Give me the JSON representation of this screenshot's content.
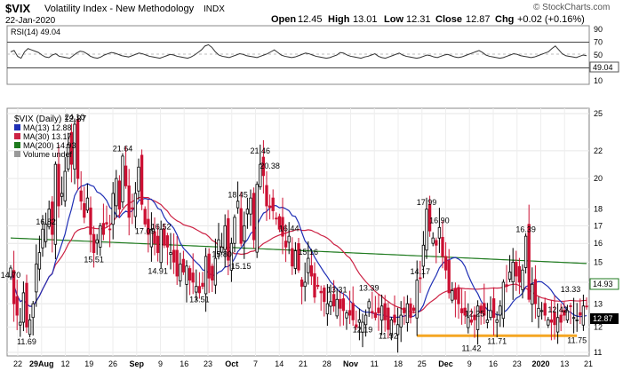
{
  "header": {
    "symbol": "$VIX",
    "name": "Volatility Index - New Methodology",
    "exchange": "INDX",
    "date": "22-Jan-2020",
    "watermark": "© StockCharts.com",
    "open_label": "Open",
    "open": "12.45",
    "high_label": "High",
    "high": "13.01",
    "low_label": "Low",
    "low": "12.31",
    "close_label": "Close",
    "close": "12.87",
    "chg_label": "Chg",
    "chg": "+0.02 (+0.16%)"
  },
  "rsi_panel": {
    "label": "RSI(14) 49.04",
    "value_badge": "49.04",
    "ticks": [
      "90",
      "70",
      "50",
      "30",
      "10"
    ],
    "levels": [
      70,
      30
    ],
    "ylim": [
      10,
      90
    ],
    "values": [
      55,
      57,
      48,
      45,
      55,
      60,
      58,
      56,
      54,
      50,
      47,
      46,
      50,
      52,
      48,
      47,
      46,
      45,
      49,
      53,
      56,
      55,
      52,
      48,
      46,
      45,
      47,
      50,
      52,
      54,
      53,
      51,
      49,
      48,
      47,
      49,
      51,
      53,
      52,
      50,
      48,
      47,
      46,
      45,
      47,
      49,
      51,
      50,
      48,
      47,
      46,
      45,
      47,
      50,
      54,
      58,
      64,
      66,
      62,
      55,
      50,
      48,
      47,
      46,
      48,
      50,
      52,
      51,
      49,
      48,
      47,
      46,
      48,
      50,
      52,
      55,
      58,
      54,
      50,
      48,
      47,
      46,
      47,
      49,
      51,
      53,
      52,
      50,
      48,
      47,
      46,
      45,
      46,
      48,
      50,
      54,
      53,
      50,
      48,
      47,
      46,
      45,
      47,
      48,
      50,
      52,
      48,
      46,
      45,
      47,
      49,
      51,
      53,
      50,
      48,
      47,
      46,
      45,
      46,
      48,
      50,
      49,
      47,
      46,
      48,
      50,
      51,
      49,
      47,
      46,
      47,
      49,
      51,
      53,
      55,
      57,
      54,
      50,
      48,
      47,
      46,
      45,
      46,
      48,
      50,
      52,
      51,
      49,
      48,
      47,
      46,
      47,
      49,
      51,
      53,
      55,
      60,
      64,
      58,
      52,
      49,
      48,
      47,
      46,
      48,
      50,
      49.04
    ]
  },
  "price_panel": {
    "legend_title": "$VIX (Daily) 12.87",
    "legend_items": [
      {
        "label": "MA(13) 12.88",
        "color": "#1f2fb5"
      },
      {
        "label": "MA(30) 13.17",
        "color": "#cc2244"
      },
      {
        "label": "MA(200) 14.93",
        "color": "#1e7a1e"
      },
      {
        "label": "Volume undef",
        "color": "#999999"
      }
    ],
    "y_ticks": [
      "25",
      "22",
      "20",
      "18",
      "17",
      "16",
      "15",
      "14",
      "13",
      "12",
      "11"
    ],
    "price_badge": "12.87",
    "ma200_badge": "14.93",
    "x_ticks": [
      "22",
      "29Aug",
      "12",
      "19",
      "26",
      "Sep",
      "9",
      "16",
      "23",
      "Oct",
      "7",
      "14",
      "21",
      "28",
      "Nov",
      "11",
      "18",
      "25",
      "Dec",
      "9",
      "16",
      "23",
      "2020",
      "13",
      "21"
    ],
    "annotations": [
      "14.70",
      "11.69",
      "16.82",
      "24.10",
      "15.51",
      "21.64",
      "17.09",
      "14.91",
      "16.52",
      "13.51",
      "15.80",
      "18.45",
      "15.15",
      "21.46",
      "20.38",
      "16.44",
      "15.16",
      "13.31",
      "13.39",
      "12.19",
      "11.92",
      "14.17",
      "17.99",
      "16.90",
      "11.42",
      "12.25",
      "11.71",
      "16.39",
      "12.42",
      "13.33",
      "11.75"
    ],
    "colors": {
      "up": "#000000",
      "down": "#cc1133",
      "support": "#f5a623",
      "ma13": "#1f2fb5",
      "ma30": "#cc2244",
      "ma200": "#1e7a1e"
    }
  },
  "chart_data": {
    "type": "line",
    "title": "$VIX Volatility Index - New Methodology",
    "ylabel": "",
    "ylim": [
      11,
      25
    ],
    "yscale": "log",
    "series": [
      {
        "name": "$VIX (Daily)",
        "values": [
          14.7,
          13.0,
          12.5,
          12.2,
          13.5,
          12.0,
          12.3,
          13.0,
          14.9,
          15.5,
          16.8,
          17.1,
          18.0,
          16.5,
          21.0,
          18.2,
          19.0,
          20.5,
          22.5,
          21.0,
          24.1,
          20.0,
          18.5,
          17.5,
          18.7,
          16.5,
          15.5,
          16.2,
          17.0,
          16.5,
          17.1,
          16.8,
          19.0,
          20.0,
          18.0,
          21.6,
          19.5,
          17.5,
          18.0,
          19.0,
          20.8,
          18.3,
          17.1,
          16.5,
          16.8,
          16.0,
          15.5,
          16.8,
          15.9,
          15.8,
          15.5,
          15.0,
          14.3,
          14.9,
          14.5,
          14.8,
          14.1,
          14.0,
          13.8,
          13.5,
          13.8,
          15.3,
          14.2,
          14.1,
          15.2,
          16.2,
          15.8,
          17.0,
          15.1,
          16.0,
          17.5,
          18.5,
          16.0,
          17.0,
          18.0,
          18.7,
          16.2,
          19.6,
          21.0,
          20.2,
          18.2,
          18.1,
          17.9,
          17.4,
          16.8,
          16.4,
          15.8,
          16.4,
          14.8,
          15.6,
          14.6,
          13.8,
          14.0,
          15.2,
          14.3,
          13.3,
          13.8,
          13.5,
          13.1,
          13.0,
          13.1,
          12.9,
          13.2,
          12.8,
          12.7,
          12.6,
          12.5,
          12.3,
          12.0,
          12.3,
          12.2,
          12.5,
          13.1,
          12.6,
          12.4,
          12.6,
          12.9,
          12.3,
          11.9,
          12.3,
          12.2,
          12.1,
          12.5,
          12.6,
          13.0,
          12.4,
          12.7,
          14.1,
          14.2,
          15.9,
          18.0,
          16.7,
          16.3,
          15.9,
          16.9,
          15.3,
          14.6,
          13.5,
          13.6,
          13.2,
          13.0,
          12.6,
          12.5,
          12.4,
          12.2,
          12.3,
          12.9,
          12.6,
          12.5,
          12.3,
          12.7,
          12.4,
          12.3,
          12.9,
          14.0,
          13.8,
          14.5,
          15.0,
          14.3,
          14.0,
          14.6,
          16.4,
          13.2,
          13.9,
          13.0,
          12.8,
          12.7,
          12.5,
          12.3,
          12.2,
          12.1,
          12.4,
          12.2,
          12.5,
          12.7,
          12.9,
          12.4,
          12.3,
          12.5,
          12.9,
          12.87
        ]
      }
    ],
    "ma13_value": 12.88,
    "ma30_value": 13.17,
    "ma200_value": 14.93
  }
}
